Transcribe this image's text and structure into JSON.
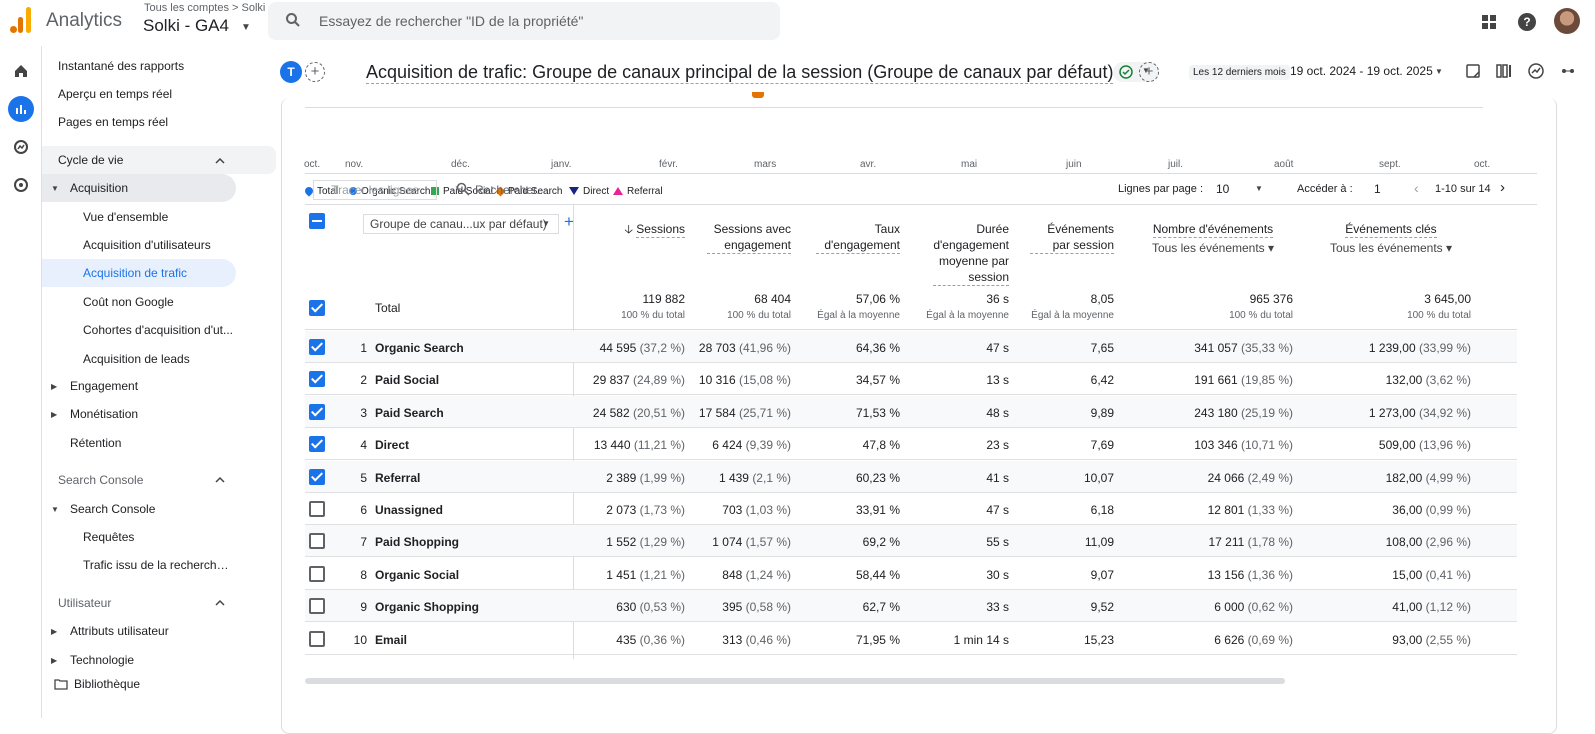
{
  "app": {
    "name": "Analytics",
    "account_crumb": "Tous les comptes > Solki",
    "account_name": "Solki  - GA4"
  },
  "search": {
    "placeholder": "Essayez de rechercher \"ID de la propriété\""
  },
  "sidebar": {
    "top_items": [
      "Instantané des rapports",
      "Aperçu en temps réel",
      "Pages en temps réel"
    ],
    "lifecycle_header": "Cycle de vie",
    "acquisition": "Acquisition",
    "acq_items": [
      "Vue d'ensemble",
      "Acquisition d'utilisateurs",
      "Acquisition de trafic",
      "Coût non Google",
      "Cohortes d'acquisition d'ut...",
      "Acquisition de leads"
    ],
    "engagement": "Engagement",
    "monetisation": "Monétisation",
    "retention": "Rétention",
    "sc_header": "Search Console",
    "sc_item": "Search Console",
    "sc_sub": [
      "Requêtes",
      "Trafic issu de la recherche ..."
    ],
    "user_header": "Utilisateur",
    "user_items": [
      "Attributs utilisateur",
      "Technologie"
    ],
    "library": "Bibliothèque"
  },
  "report": {
    "badge": "T",
    "title": "Acquisition de trafic: Groupe de canaux principal de la session (Groupe de canaux par défaut)",
    "date_label": "Les 12 derniers mois",
    "date_range": "19 oct. 2024 - 19 oct. 2025"
  },
  "chart_axis": [
    "oct.",
    "nov.",
    "déc.",
    "janv.",
    "févr.",
    "mars",
    "avr.",
    "mai",
    "juin",
    "juil.",
    "août",
    "sept.",
    "oct."
  ],
  "legend": [
    {
      "name": "Total",
      "color": "#1a73e8"
    },
    {
      "name": "Organic Search",
      "color": "#1a73e8"
    },
    {
      "name": "Paid Social",
      "color": "#34a853"
    },
    {
      "name": "Paid Search",
      "color": "#e37400"
    },
    {
      "name": "Direct",
      "color": "#1a237e"
    },
    {
      "name": "Referral",
      "color": "#e52592"
    }
  ],
  "toolbar": {
    "tracer": "Tracer les lignes",
    "search": "Rechercher...",
    "lpp_label": "Lignes par page :",
    "lpp_value": "10",
    "goto_label": "Accéder à :",
    "goto_value": "1",
    "range": "1-10 sur 14"
  },
  "table": {
    "dim_select": "Groupe de canau...ux par défaut)",
    "headers": [
      "Sessions",
      "Sessions avec engagement",
      "Taux d'engagement",
      "Durée d'engagement moyenne par session",
      "Événements par session",
      "Nombre d'événements",
      "Événements clés"
    ],
    "header_subs": [
      "Tous les événements",
      "Tous les événements"
    ],
    "total_label": "Total",
    "totals": [
      [
        "119 882",
        "100 % du total"
      ],
      [
        "68 404",
        "100 % du total"
      ],
      [
        "57,06 %",
        "Égal à la moyenne"
      ],
      [
        "36 s",
        "Égal à la moyenne"
      ],
      [
        "8,05",
        "Égal à la moyenne"
      ],
      [
        "965 376",
        "100 % du total"
      ],
      [
        "3 645,00",
        "100 % du total"
      ]
    ],
    "rows": [
      {
        "n": "1",
        "name": "Organic Search",
        "checked": true,
        "v": [
          [
            "44 595",
            "(37,2 %)"
          ],
          [
            "28 703",
            "(41,96 %)"
          ],
          [
            "64,36 %",
            ""
          ],
          [
            "47 s",
            ""
          ],
          [
            "7,65",
            ""
          ],
          [
            "341 057",
            "(35,33 %)"
          ],
          [
            "1 239,00",
            "(33,99 %)"
          ]
        ]
      },
      {
        "n": "2",
        "name": "Paid Social",
        "checked": true,
        "v": [
          [
            "29 837",
            "(24,89 %)"
          ],
          [
            "10 316",
            "(15,08 %)"
          ],
          [
            "34,57 %",
            ""
          ],
          [
            "13 s",
            ""
          ],
          [
            "6,42",
            ""
          ],
          [
            "191 661",
            "(19,85 %)"
          ],
          [
            "132,00",
            "(3,62 %)"
          ]
        ]
      },
      {
        "n": "3",
        "name": "Paid Search",
        "checked": true,
        "v": [
          [
            "24 582",
            "(20,51 %)"
          ],
          [
            "17 584",
            "(25,71 %)"
          ],
          [
            "71,53 %",
            ""
          ],
          [
            "48 s",
            ""
          ],
          [
            "9,89",
            ""
          ],
          [
            "243 180",
            "(25,19 %)"
          ],
          [
            "1 273,00",
            "(34,92 %)"
          ]
        ]
      },
      {
        "n": "4",
        "name": "Direct",
        "checked": true,
        "v": [
          [
            "13 440",
            "(11,21 %)"
          ],
          [
            "6 424",
            "(9,39 %)"
          ],
          [
            "47,8 %",
            ""
          ],
          [
            "23 s",
            ""
          ],
          [
            "7,69",
            ""
          ],
          [
            "103 346",
            "(10,71 %)"
          ],
          [
            "509,00",
            "(13,96 %)"
          ]
        ]
      },
      {
        "n": "5",
        "name": "Referral",
        "checked": true,
        "v": [
          [
            "2 389",
            "(1,99 %)"
          ],
          [
            "1 439",
            "(2,1 %)"
          ],
          [
            "60,23 %",
            ""
          ],
          [
            "41 s",
            ""
          ],
          [
            "10,07",
            ""
          ],
          [
            "24 066",
            "(2,49 %)"
          ],
          [
            "182,00",
            "(4,99 %)"
          ]
        ]
      },
      {
        "n": "6",
        "name": "Unassigned",
        "checked": false,
        "v": [
          [
            "2 073",
            "(1,73 %)"
          ],
          [
            "703",
            "(1,03 %)"
          ],
          [
            "33,91 %",
            ""
          ],
          [
            "47 s",
            ""
          ],
          [
            "6,18",
            ""
          ],
          [
            "12 801",
            "(1,33 %)"
          ],
          [
            "36,00",
            "(0,99 %)"
          ]
        ]
      },
      {
        "n": "7",
        "name": "Paid Shopping",
        "checked": false,
        "v": [
          [
            "1 552",
            "(1,29 %)"
          ],
          [
            "1 074",
            "(1,57 %)"
          ],
          [
            "69,2 %",
            ""
          ],
          [
            "55 s",
            ""
          ],
          [
            "11,09",
            ""
          ],
          [
            "17 211",
            "(1,78 %)"
          ],
          [
            "108,00",
            "(2,96 %)"
          ]
        ]
      },
      {
        "n": "8",
        "name": "Organic Social",
        "checked": false,
        "v": [
          [
            "1 451",
            "(1,21 %)"
          ],
          [
            "848",
            "(1,24 %)"
          ],
          [
            "58,44 %",
            ""
          ],
          [
            "30 s",
            ""
          ],
          [
            "9,07",
            ""
          ],
          [
            "13 156",
            "(1,36 %)"
          ],
          [
            "15,00",
            "(0,41 %)"
          ]
        ]
      },
      {
        "n": "9",
        "name": "Organic Shopping",
        "checked": false,
        "v": [
          [
            "630",
            "(0,53 %)"
          ],
          [
            "395",
            "(0,58 %)"
          ],
          [
            "62,7 %",
            ""
          ],
          [
            "33 s",
            ""
          ],
          [
            "9,52",
            ""
          ],
          [
            "6 000",
            "(0,62 %)"
          ],
          [
            "41,00",
            "(1,12 %)"
          ]
        ]
      },
      {
        "n": "10",
        "name": "Email",
        "checked": false,
        "v": [
          [
            "435",
            "(0,36 %)"
          ],
          [
            "313",
            "(0,46 %)"
          ],
          [
            "71,95 %",
            ""
          ],
          [
            "1 min 14 s",
            ""
          ],
          [
            "15,23",
            ""
          ],
          [
            "6 626",
            "(0,69 %)"
          ],
          [
            "93,00",
            "(2,55 %)"
          ]
        ]
      }
    ]
  }
}
